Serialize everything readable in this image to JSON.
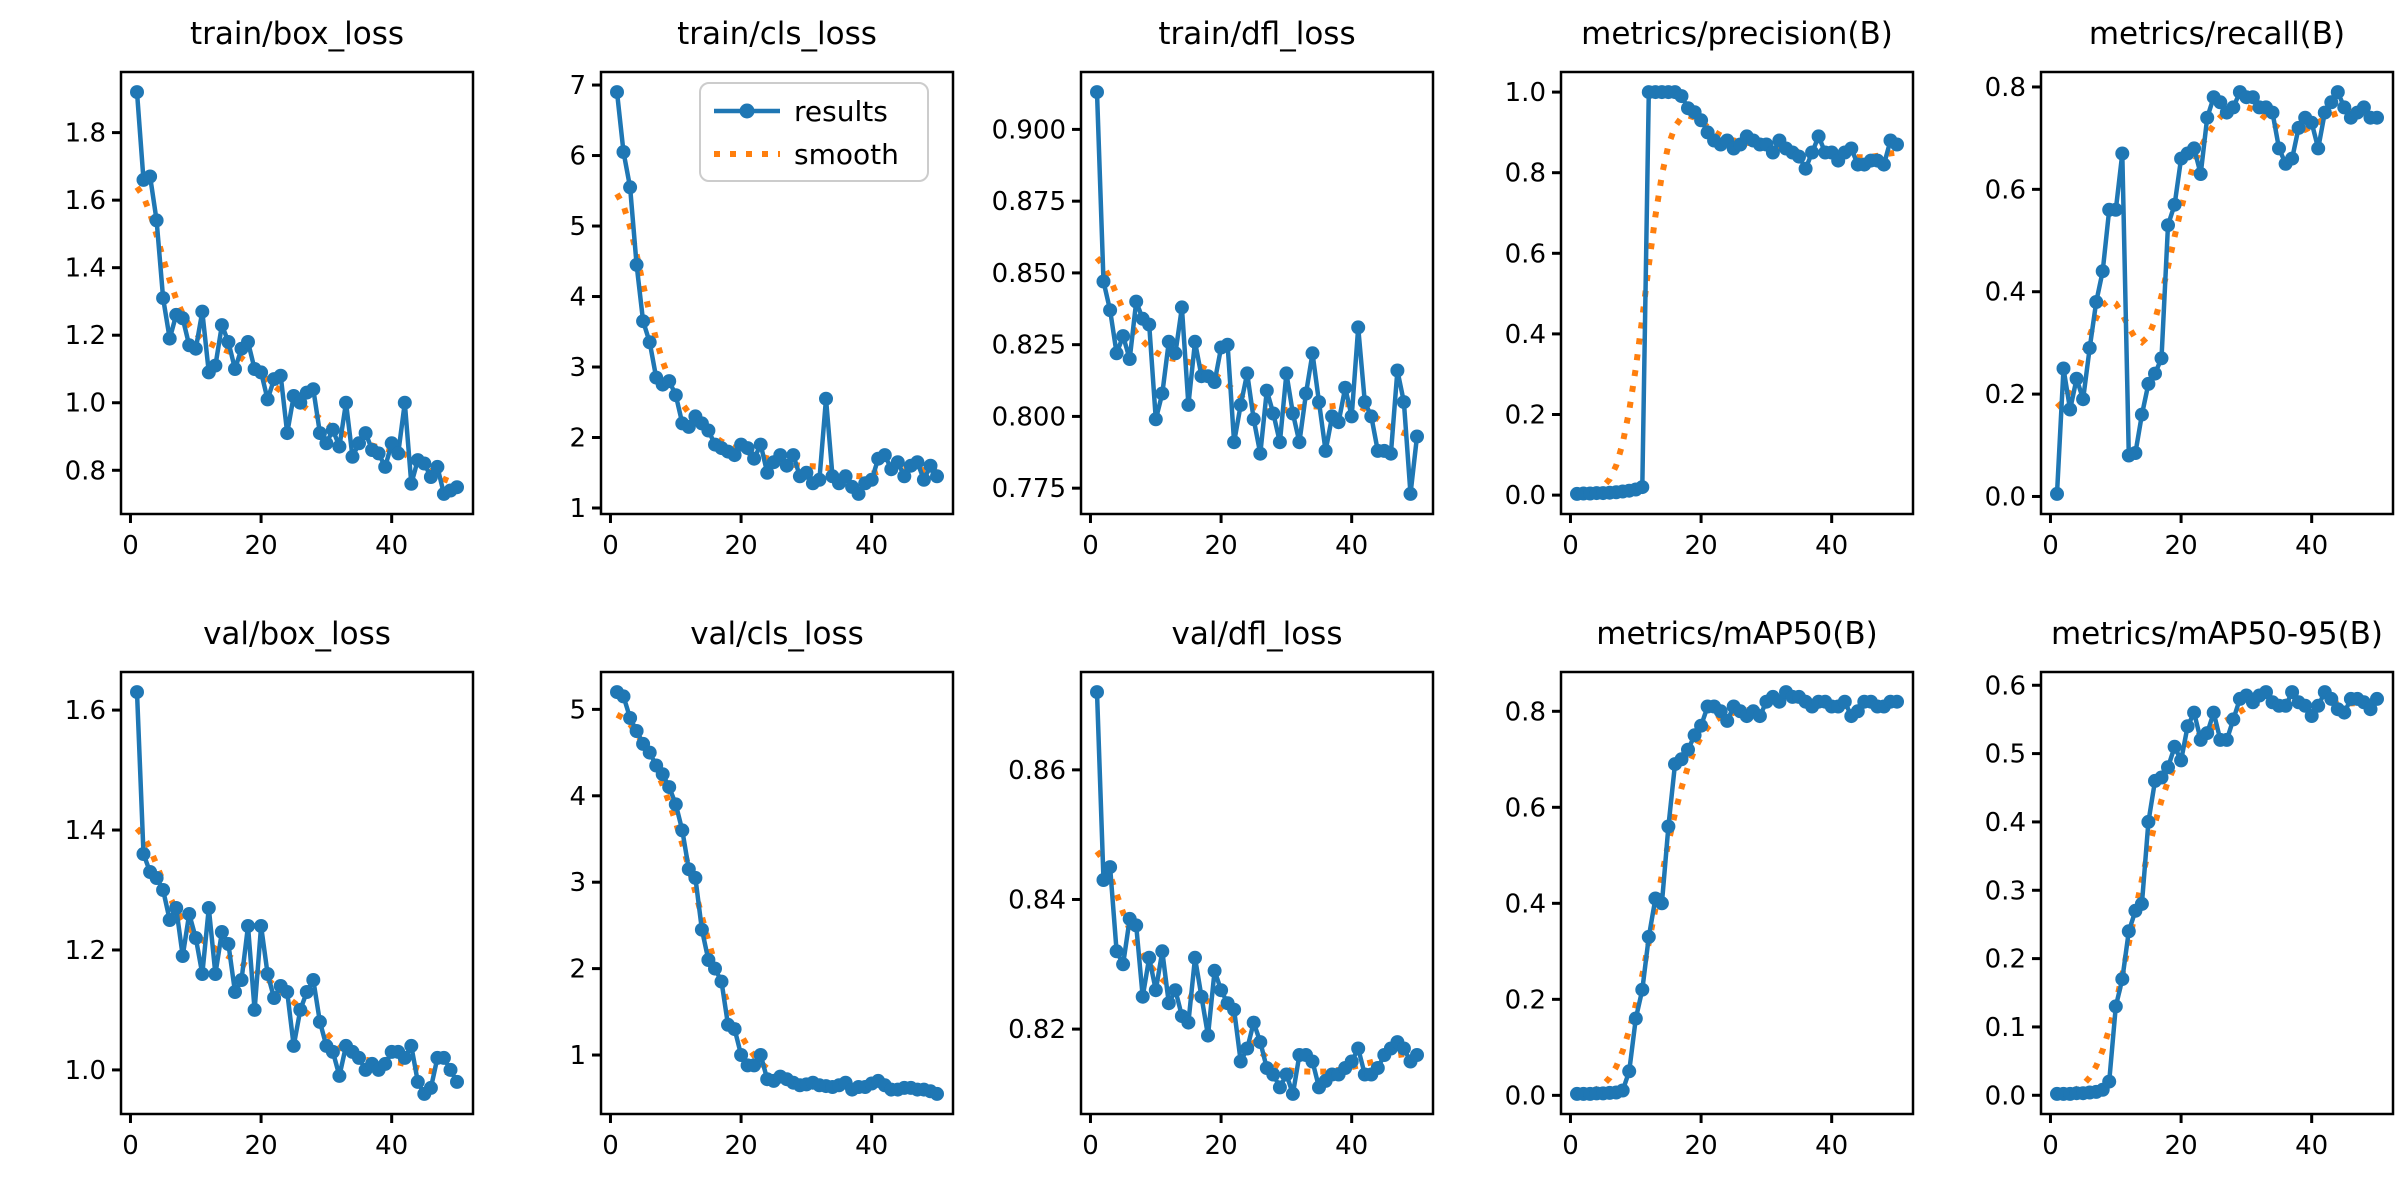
{
  "figure": {
    "colors": {
      "results": "#1f77b4",
      "smooth": "#ff7f0e",
      "spine": "#000000",
      "legend_border": "#cccccc"
    },
    "legend": {
      "results_label": "results",
      "smooth_label": "smooth"
    },
    "legend_plot_index": 1,
    "smooth_sigma": 3,
    "x_ticks": [
      0,
      20,
      40
    ],
    "x_start": 1
  },
  "chart_data": {
    "type": "line",
    "x_ticks": [
      0,
      20,
      40
    ],
    "series_legend": [
      "results",
      "smooth"
    ],
    "plots": [
      {
        "title": "train/box_loss",
        "ytick_labels": [
          "0.8",
          "1.0",
          "1.2",
          "1.4",
          "1.6",
          "1.8"
        ],
        "values": [
          1.92,
          1.66,
          1.67,
          1.54,
          1.31,
          1.19,
          1.26,
          1.25,
          1.17,
          1.16,
          1.27,
          1.09,
          1.11,
          1.23,
          1.18,
          1.1,
          1.16,
          1.18,
          1.1,
          1.09,
          1.01,
          1.07,
          1.08,
          0.91,
          1.02,
          1.0,
          1.03,
          1.04,
          0.91,
          0.88,
          0.92,
          0.87,
          1.0,
          0.84,
          0.88,
          0.91,
          0.86,
          0.85,
          0.81,
          0.88,
          0.85,
          1.0,
          0.76,
          0.83,
          0.82,
          0.78,
          0.81,
          0.73,
          0.74,
          0.75
        ]
      },
      {
        "title": "train/cls_loss",
        "ytick_labels": [
          "1",
          "2",
          "3",
          "4",
          "5",
          "6",
          "7"
        ],
        "values": [
          6.9,
          6.05,
          5.55,
          4.45,
          3.65,
          3.35,
          2.85,
          2.75,
          2.8,
          2.6,
          2.2,
          2.15,
          2.3,
          2.2,
          2.1,
          1.9,
          1.85,
          1.8,
          1.75,
          1.9,
          1.85,
          1.7,
          1.9,
          1.5,
          1.65,
          1.75,
          1.6,
          1.75,
          1.45,
          1.5,
          1.35,
          1.4,
          2.55,
          1.45,
          1.35,
          1.45,
          1.3,
          1.2,
          1.35,
          1.4,
          1.7,
          1.75,
          1.55,
          1.65,
          1.45,
          1.6,
          1.65,
          1.4,
          1.6,
          1.45
        ]
      },
      {
        "title": "train/dfl_loss",
        "ytick_labels": [
          "0.775",
          "0.800",
          "0.825",
          "0.850",
          "0.875",
          "0.900"
        ],
        "values": [
          0.913,
          0.847,
          0.837,
          0.822,
          0.828,
          0.82,
          0.84,
          0.834,
          0.832,
          0.799,
          0.808,
          0.826,
          0.822,
          0.838,
          0.804,
          0.826,
          0.814,
          0.814,
          0.812,
          0.824,
          0.825,
          0.791,
          0.804,
          0.815,
          0.799,
          0.787,
          0.809,
          0.801,
          0.791,
          0.815,
          0.801,
          0.791,
          0.808,
          0.822,
          0.805,
          0.788,
          0.8,
          0.798,
          0.81,
          0.8,
          0.831,
          0.805,
          0.8,
          0.788,
          0.788,
          0.787,
          0.816,
          0.805,
          0.773,
          0.793
        ]
      },
      {
        "title": "metrics/precision(B)",
        "ytick_labels": [
          "0.0",
          "0.2",
          "0.4",
          "0.6",
          "0.8",
          "1.0"
        ],
        "values": [
          0.003,
          0.004,
          0.004,
          0.005,
          0.005,
          0.006,
          0.007,
          0.009,
          0.011,
          0.014,
          0.02,
          1.0,
          1.0,
          1.0,
          1.0,
          1.0,
          0.99,
          0.96,
          0.95,
          0.93,
          0.9,
          0.88,
          0.87,
          0.88,
          0.86,
          0.87,
          0.89,
          0.88,
          0.87,
          0.87,
          0.85,
          0.88,
          0.86,
          0.85,
          0.84,
          0.81,
          0.85,
          0.89,
          0.85,
          0.85,
          0.83,
          0.85,
          0.86,
          0.82,
          0.82,
          0.83,
          0.83,
          0.82,
          0.88,
          0.87
        ]
      },
      {
        "title": "metrics/recall(B)",
        "ytick_labels": [
          "0.0",
          "0.2",
          "0.4",
          "0.6",
          "0.8"
        ],
        "values": [
          0.005,
          0.25,
          0.17,
          0.23,
          0.19,
          0.29,
          0.38,
          0.44,
          0.56,
          0.56,
          0.67,
          0.08,
          0.085,
          0.16,
          0.22,
          0.24,
          0.27,
          0.53,
          0.57,
          0.66,
          0.67,
          0.68,
          0.63,
          0.74,
          0.78,
          0.77,
          0.75,
          0.76,
          0.79,
          0.78,
          0.78,
          0.76,
          0.76,
          0.75,
          0.68,
          0.65,
          0.66,
          0.72,
          0.74,
          0.73,
          0.68,
          0.75,
          0.77,
          0.79,
          0.76,
          0.74,
          0.75,
          0.76,
          0.74,
          0.74
        ]
      },
      {
        "title": "val/box_loss",
        "ytick_labels": [
          "1.0",
          "1.2",
          "1.4",
          "1.6"
        ],
        "values": [
          1.63,
          1.36,
          1.33,
          1.32,
          1.3,
          1.25,
          1.27,
          1.19,
          1.26,
          1.22,
          1.16,
          1.27,
          1.16,
          1.23,
          1.21,
          1.13,
          1.15,
          1.24,
          1.1,
          1.24,
          1.16,
          1.12,
          1.14,
          1.13,
          1.04,
          1.1,
          1.13,
          1.15,
          1.08,
          1.04,
          1.03,
          0.99,
          1.04,
          1.03,
          1.02,
          1.0,
          1.01,
          1.0,
          1.01,
          1.03,
          1.03,
          1.02,
          1.04,
          0.98,
          0.96,
          0.97,
          1.02,
          1.02,
          1.0,
          0.98
        ]
      },
      {
        "title": "val/cls_loss",
        "ytick_labels": [
          "1",
          "2",
          "3",
          "4",
          "5"
        ],
        "values": [
          5.2,
          5.15,
          4.9,
          4.75,
          4.6,
          4.5,
          4.35,
          4.25,
          4.1,
          3.9,
          3.6,
          3.15,
          3.05,
          2.45,
          2.1,
          2.0,
          1.85,
          1.35,
          1.3,
          1.0,
          0.88,
          0.88,
          1.0,
          0.72,
          0.7,
          0.75,
          0.72,
          0.68,
          0.65,
          0.66,
          0.68,
          0.65,
          0.64,
          0.63,
          0.65,
          0.68,
          0.6,
          0.63,
          0.63,
          0.67,
          0.7,
          0.65,
          0.6,
          0.6,
          0.62,
          0.62,
          0.6,
          0.6,
          0.58,
          0.55
        ]
      },
      {
        "title": "val/dfl_loss",
        "ytick_labels": [
          "0.82",
          "0.84",
          "0.86"
        ],
        "values": [
          0.872,
          0.843,
          0.845,
          0.832,
          0.83,
          0.837,
          0.836,
          0.825,
          0.831,
          0.826,
          0.832,
          0.824,
          0.826,
          0.822,
          0.821,
          0.831,
          0.825,
          0.819,
          0.829,
          0.826,
          0.824,
          0.823,
          0.815,
          0.817,
          0.821,
          0.818,
          0.814,
          0.813,
          0.811,
          0.813,
          0.81,
          0.816,
          0.816,
          0.815,
          0.811,
          0.812,
          0.813,
          0.813,
          0.814,
          0.815,
          0.817,
          0.813,
          0.813,
          0.814,
          0.816,
          0.817,
          0.818,
          0.817,
          0.815,
          0.816
        ]
      },
      {
        "title": "metrics/mAP50(B)",
        "ytick_labels": [
          "0.0",
          "0.2",
          "0.4",
          "0.6",
          "0.8"
        ],
        "values": [
          0.003,
          0.003,
          0.003,
          0.004,
          0.004,
          0.005,
          0.006,
          0.01,
          0.05,
          0.16,
          0.22,
          0.33,
          0.41,
          0.4,
          0.56,
          0.69,
          0.7,
          0.72,
          0.75,
          0.77,
          0.81,
          0.81,
          0.8,
          0.78,
          0.81,
          0.8,
          0.79,
          0.8,
          0.79,
          0.82,
          0.83,
          0.82,
          0.84,
          0.83,
          0.83,
          0.82,
          0.81,
          0.82,
          0.82,
          0.81,
          0.81,
          0.82,
          0.79,
          0.8,
          0.82,
          0.82,
          0.81,
          0.81,
          0.82,
          0.82
        ]
      },
      {
        "title": "metrics/mAP50-95(B)",
        "ytick_labels": [
          "0.0",
          "0.1",
          "0.2",
          "0.3",
          "0.4",
          "0.5",
          "0.6"
        ],
        "values": [
          0.002,
          0.002,
          0.002,
          0.003,
          0.003,
          0.004,
          0.005,
          0.008,
          0.02,
          0.13,
          0.17,
          0.24,
          0.27,
          0.28,
          0.4,
          0.46,
          0.465,
          0.48,
          0.51,
          0.49,
          0.54,
          0.56,
          0.52,
          0.53,
          0.56,
          0.52,
          0.52,
          0.55,
          0.58,
          0.585,
          0.575,
          0.585,
          0.59,
          0.575,
          0.57,
          0.57,
          0.59,
          0.575,
          0.57,
          0.555,
          0.57,
          0.59,
          0.58,
          0.565,
          0.56,
          0.58,
          0.58,
          0.575,
          0.565,
          0.58
        ]
      }
    ]
  }
}
